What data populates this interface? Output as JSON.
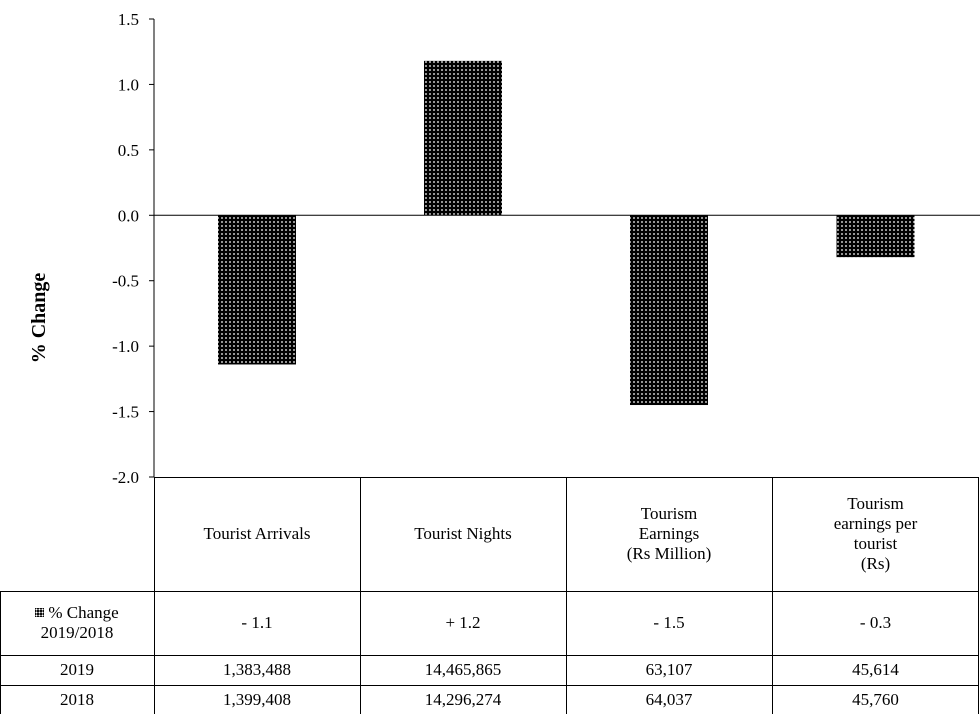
{
  "chart_data": {
    "type": "bar",
    "ylabel": "% Change",
    "ylim": [
      -2.0,
      1.5
    ],
    "yticks": [
      "1.5",
      "1.0",
      "0.5",
      "0.0",
      "-0.5",
      "-1.0",
      "-1.5",
      "-2.0"
    ],
    "ytick_values": [
      1.5,
      1.0,
      0.5,
      0.0,
      -0.5,
      -1.0,
      -1.5,
      -2.0
    ],
    "grid": false,
    "categories": [
      "Tourist Arrivals",
      "Tourist Nights",
      "Tourism\nEarnings\n(Rs Million)",
      "Tourism\nearnings per\ntourist\n(Rs)"
    ],
    "series": [
      {
        "name": "% Change\n2019/2018",
        "values": [
          -1.14,
          1.18,
          -1.45,
          -0.32
        ]
      }
    ],
    "bar_color": "#000000",
    "pattern": "dotted"
  },
  "table": {
    "series_label": "% Change\n2019/2018",
    "change_row": [
      "- 1.1",
      "+ 1.2",
      "- 1.5",
      "- 0.3"
    ],
    "rows": [
      {
        "label": "2019",
        "values": [
          "1,383,488",
          "14,465,865",
          "63,107",
          "45,614"
        ]
      },
      {
        "label": "2018",
        "values": [
          "1,399,408",
          "14,296,274",
          "64,037",
          "45,760"
        ]
      }
    ]
  }
}
